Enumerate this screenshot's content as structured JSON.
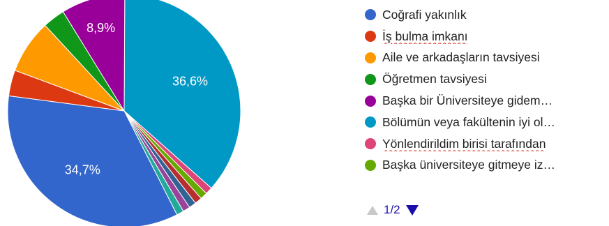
{
  "chart_data": {
    "type": "pie",
    "slices": [
      {
        "label": "Bölümün veya fakültenin iyi olması",
        "value": 36.6,
        "color": "#0099c6",
        "data_label": "36,6%"
      },
      {
        "label": "Yönlendirildim birisi tarafından",
        "value": 1.0,
        "color": "#dd4477",
        "data_label": ""
      },
      {
        "label": "Başka üniversiteye gitmeye izin verilmedi",
        "value": 1.0,
        "color": "#66aa00",
        "data_label": ""
      },
      {
        "label": "",
        "value": 1.0,
        "color": "#b82e2e",
        "data_label": ""
      },
      {
        "label": "",
        "value": 1.0,
        "color": "#316395",
        "data_label": ""
      },
      {
        "label": "",
        "value": 1.0,
        "color": "#994499",
        "data_label": ""
      },
      {
        "label": "",
        "value": 1.0,
        "color": "#22aa99",
        "data_label": ""
      },
      {
        "label": "Coğrafi yakınlık",
        "value": 34.7,
        "color": "#3366cc",
        "data_label": "34,7%"
      },
      {
        "label": "İş bulma imkanı",
        "value": 3.6,
        "color": "#dc3912",
        "data_label": ""
      },
      {
        "label": "Aile ve arkadaşların tavsiyesi",
        "value": 7.5,
        "color": "#ff9900",
        "data_label": ""
      },
      {
        "label": "Öğretmen tavsiyesi",
        "value": 3.1,
        "color": "#109618",
        "data_label": ""
      },
      {
        "label": "Başka bir Üniversiteye gidememek",
        "value": 8.9,
        "color": "#990099",
        "data_label": "8,9%"
      }
    ]
  },
  "legend": {
    "items": [
      {
        "label": "Coğrafi yakınlık",
        "color": "#3366cc"
      },
      {
        "label": "İş bulma imkanı",
        "color": "#dc3912"
      },
      {
        "label": "Aile ve arkadaşların tavsiyesi",
        "color": "#ff9900"
      },
      {
        "label": "Öğretmen tavsiyesi",
        "color": "#109618"
      },
      {
        "label": "Başka bir Üniversiteye gidem…",
        "color": "#990099"
      },
      {
        "label": "Bölümün veya fakültenin iyi ol…",
        "color": "#0099c6"
      },
      {
        "label": "Yönlendirildim birisi tarafından",
        "color": "#dd4477"
      },
      {
        "label": "Başka üniversiteye gitmeye iz…",
        "color": "#66aa00"
      }
    ]
  },
  "pager": {
    "text": "1/2",
    "prev_icon": "triangle-up-icon",
    "next_icon": "triangle-down-icon"
  }
}
